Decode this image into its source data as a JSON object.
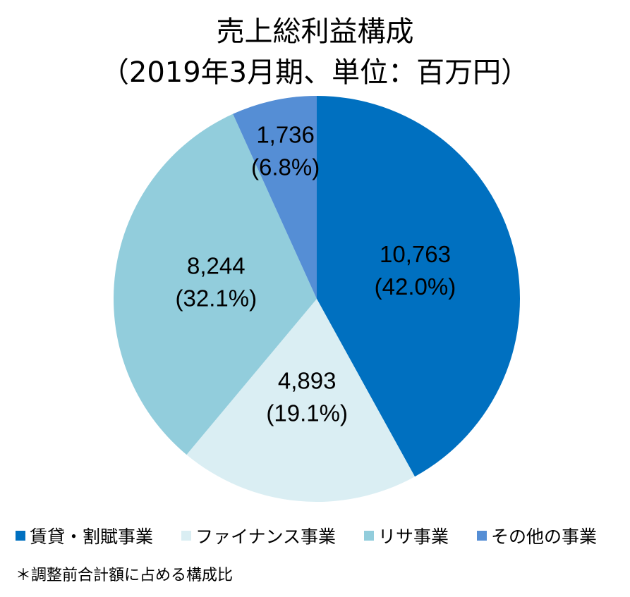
{
  "chart_data": {
    "type": "pie",
    "title": "売上総利益構成",
    "subtitle": "（2019年3月期、単位：百万円）",
    "slices": [
      {
        "name": "賃貸・割賦事業",
        "value": 10763,
        "value_label": "10,763",
        "percent_label": "(42.0%)",
        "percent": 42.0,
        "color": "#0070C0"
      },
      {
        "name": "ファイナンス事業",
        "value": 4893,
        "value_label": "4,893",
        "percent_label": "(19.1%)",
        "percent": 19.1,
        "color": "#DAEEF3"
      },
      {
        "name": "リサ事業",
        "value": 8244,
        "value_label": "8,244",
        "percent_label": "(32.1%)",
        "percent": 32.1,
        "color": "#92CDDC"
      },
      {
        "name": "その他の事業",
        "value": 1736,
        "value_label": "1,736",
        "percent_label": "(6.8%)",
        "percent": 6.8,
        "color": "#558ED5"
      }
    ],
    "legend_placement": "bottom",
    "footnote": "＊調整前合計額に占める構成比"
  }
}
